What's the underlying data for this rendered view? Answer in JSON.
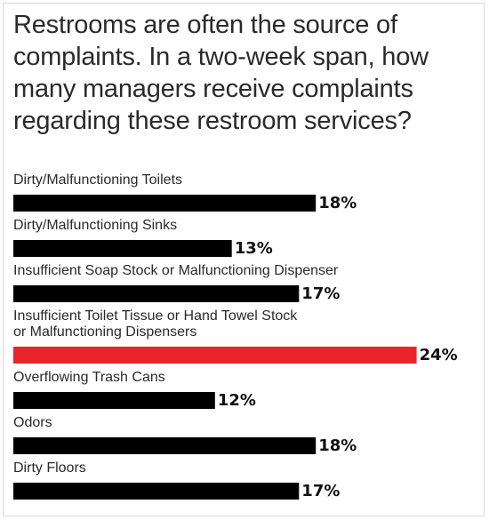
{
  "chart_data": {
    "type": "bar",
    "orientation": "horizontal",
    "title": "Restrooms are often the source of complaints. In a two-week span, how many managers receive complaints regarding these restroom services?",
    "categories": [
      "Dirty/Malfunctioning Toilets",
      "Dirty/Malfunctioning Sinks",
      "Insufficient Soap Stock or Malfunctioning Dispenser",
      "Insufficient Toilet Tissue or Hand Towel Stock or Malfunctioning Dispensers",
      "Overflowing Trash Cans",
      "Odors",
      "Dirty Floors"
    ],
    "category_lines": [
      [
        "Dirty/Malfunctioning Toilets"
      ],
      [
        "Dirty/Malfunctioning Sinks"
      ],
      [
        "Insufficient Soap Stock or Malfunctioning Dispenser"
      ],
      [
        "Insufficient Toilet Tissue or Hand Towel Stock",
        "or Malfunctioning Dispensers"
      ],
      [
        "Overflowing Trash Cans"
      ],
      [
        "Odors"
      ],
      [
        "Dirty Floors"
      ]
    ],
    "values": [
      18,
      13,
      17,
      24,
      12,
      18,
      17
    ],
    "value_labels": [
      "18%",
      "13%",
      "17%",
      "24%",
      "12%",
      "18%",
      "17%"
    ],
    "highlight_index": 3,
    "colors": {
      "bar": "#000000",
      "highlight": "#e8262a"
    }
  }
}
